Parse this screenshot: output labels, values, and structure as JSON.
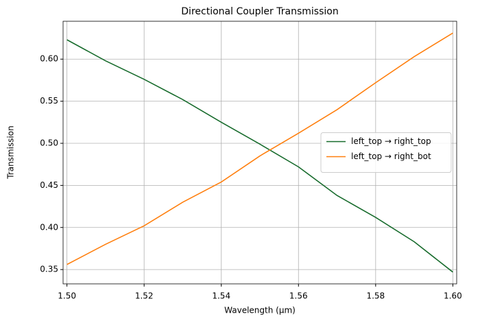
{
  "chart_data": {
    "type": "line",
    "title": "Directional Coupler Transmission",
    "xlabel": "Wavelength (μm)",
    "ylabel": "Transmission",
    "x": [
      1.5,
      1.51,
      1.52,
      1.53,
      1.54,
      1.55,
      1.56,
      1.57,
      1.58,
      1.59,
      1.6
    ],
    "series": [
      {
        "name": "left_top → right_top",
        "color": "#176b2c",
        "values": [
          0.623,
          0.598,
          0.576,
          0.552,
          0.525,
          0.499,
          0.472,
          0.438,
          0.412,
          0.383,
          0.347
        ]
      },
      {
        "name": "left_top → right_bot",
        "color": "#ff7f0e",
        "values": [
          0.356,
          0.38,
          0.402,
          0.43,
          0.454,
          0.485,
          0.512,
          0.54,
          0.572,
          0.603,
          0.631
        ]
      }
    ],
    "xlim": [
      1.499,
      1.601
    ],
    "ylim": [
      0.333,
      0.645
    ],
    "xticks": [
      {
        "value": 1.5,
        "label": "1.50"
      },
      {
        "value": 1.52,
        "label": "1.52"
      },
      {
        "value": 1.54,
        "label": "1.54"
      },
      {
        "value": 1.56,
        "label": "1.56"
      },
      {
        "value": 1.58,
        "label": "1.58"
      },
      {
        "value": 1.6,
        "label": "1.60"
      }
    ],
    "yticks": [
      0.35,
      {
        "value": 0.4,
        "label": "0.40"
      },
      0.45,
      {
        "value": 0.5,
        "label": "0.50"
      },
      0.55,
      {
        "value": 0.6,
        "label": "0.60"
      }
    ],
    "grid": true,
    "legend": "right"
  }
}
